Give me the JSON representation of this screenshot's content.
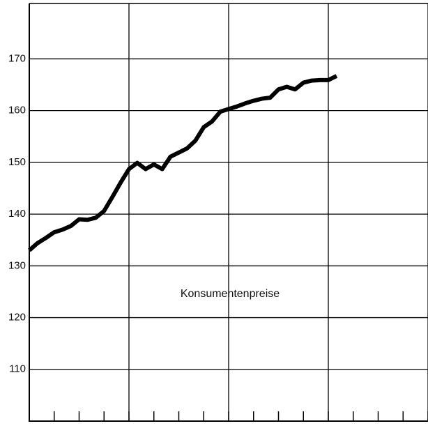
{
  "chart_data": {
    "type": "line",
    "annotation": "Konsumentenpreise",
    "x": [
      0,
      1,
      2,
      3,
      4,
      5,
      6,
      7,
      8,
      9,
      10,
      11,
      12,
      13,
      14,
      15,
      16,
      17,
      18,
      19,
      20,
      21,
      22,
      23,
      24,
      25,
      26,
      27,
      28,
      29,
      30,
      31,
      32,
      33,
      34,
      35,
      36,
      37
    ],
    "series": [
      {
        "name": null,
        "color": "#000000",
        "values": [
          133.0,
          134.4,
          135.4,
          136.5,
          137.0,
          137.7,
          139.0,
          138.9,
          139.3,
          140.6,
          143.3,
          146.1,
          148.7,
          149.9,
          148.7,
          149.6,
          148.7,
          151.1,
          151.9,
          152.7,
          154.2,
          156.8,
          157.9,
          159.8,
          160.3,
          160.8,
          161.4,
          161.9,
          162.3,
          162.5,
          164.1,
          164.6,
          164.1,
          165.4,
          165.8,
          165.9,
          165.9,
          166.7
        ]
      }
    ],
    "xlim": [
      0,
      48
    ],
    "xticks": [
      0,
      3,
      6,
      9,
      12,
      15,
      18,
      21,
      24,
      27,
      30,
      33,
      36,
      39,
      42,
      45,
      48
    ],
    "xgrid": [
      0,
      12,
      24,
      36,
      48
    ],
    "ylim": [
      100,
      180.7
    ],
    "yticks": [
      110,
      120,
      130,
      140,
      150,
      160,
      170
    ],
    "grid": true
  }
}
